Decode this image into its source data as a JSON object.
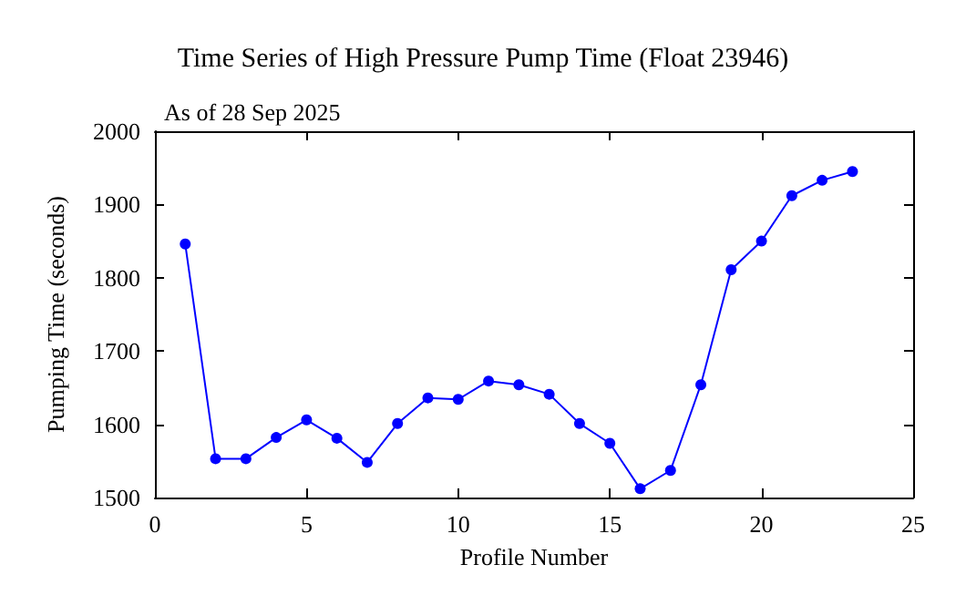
{
  "chart_data": {
    "type": "line",
    "title": "Time Series of High Pressure Pump Time (Float 23946)",
    "subtitle": "As of 28 Sep 2025",
    "xlabel": "Profile Number",
    "ylabel": "Pumping Time (seconds)",
    "x": [
      1,
      2,
      3,
      4,
      5,
      6,
      7,
      8,
      9,
      10,
      11,
      12,
      13,
      14,
      15,
      16,
      17,
      18,
      19,
      20,
      21,
      22,
      23
    ],
    "series": [
      {
        "color": "#0000ff",
        "values": [
          1846,
          1553,
          1553,
          1582,
          1606,
          1581,
          1548,
          1601,
          1636,
          1634,
          1659,
          1654,
          1641,
          1601,
          1574,
          1512,
          1537,
          1654,
          1811,
          1850,
          1912,
          1933,
          1945
        ]
      }
    ],
    "xlim": [
      0,
      25
    ],
    "xticks": [
      0,
      5,
      10,
      15,
      20,
      25
    ],
    "ylim": [
      1500,
      2000
    ],
    "yticks": [
      1500,
      1600,
      1700,
      1800,
      1900,
      2000
    ],
    "marker": "circle",
    "line_style": "solid"
  }
}
